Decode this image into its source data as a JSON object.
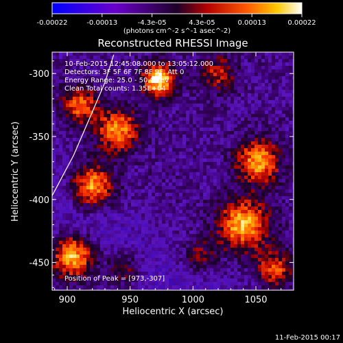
{
  "chart_data": {
    "type": "heatmap",
    "title": "Reconstructed RHESSI Image",
    "xlabel": "Heliocentric X (arcsec)",
    "ylabel": "Heliocentric Y (arcsec)",
    "xlim": [
      888,
      1080
    ],
    "ylim": [
      -472,
      -283
    ],
    "x_ticks": [
      900,
      950,
      1000,
      1050
    ],
    "y_ticks": [
      -300,
      -350,
      -400,
      -450
    ],
    "colorbar": {
      "ticks": [
        "-0.00022",
        "-0.00013",
        "-4.3e-05",
        "4.3e-05",
        "0.00013",
        "0.00022"
      ],
      "unit_label": "(photons cm^-2 s^-1 asec^-2)",
      "range": [
        -0.00022,
        0.00022
      ]
    },
    "info_lines": [
      "10-Feb-2015 12:45:08.000 to 13:05:12.000",
      "Detectors: 3F 5F 6F 7F 8F 9F, Att 0",
      "Energy Range: 25.0 - 50.0 keV",
      "Clean    Total counts: 1.35E+04"
    ],
    "peak_label": "Position of Peak = [973,-307]",
    "peak": [
      973,
      -307
    ],
    "timestamp": "11-Feb-2015 00:17",
    "sources": [
      {
        "x": 973,
        "y": -305,
        "sigma": 9,
        "amp": 1.0
      },
      {
        "x": 940,
        "y": -345,
        "sigma": 12,
        "amp": 0.75
      },
      {
        "x": 920,
        "y": -390,
        "sigma": 12,
        "amp": 0.85
      },
      {
        "x": 905,
        "y": -445,
        "sigma": 12,
        "amp": 0.9
      },
      {
        "x": 910,
        "y": -325,
        "sigma": 10,
        "amp": 0.65
      },
      {
        "x": 1052,
        "y": -370,
        "sigma": 12,
        "amp": 0.8
      },
      {
        "x": 1040,
        "y": -420,
        "sigma": 14,
        "amp": 0.85
      },
      {
        "x": 1065,
        "y": -455,
        "sigma": 10,
        "amp": 0.6
      },
      {
        "x": 1020,
        "y": -300,
        "sigma": 10,
        "amp": 0.45
      },
      {
        "x": 945,
        "y": -455,
        "sigma": 10,
        "amp": 0.45
      },
      {
        "x": 1005,
        "y": -445,
        "sigma": 10,
        "amp": 0.35
      }
    ],
    "limb_curve": [
      [
        888,
        -397
      ],
      [
        905,
        -365
      ],
      [
        918,
        -335
      ],
      [
        930,
        -307
      ],
      [
        937,
        -285
      ]
    ]
  }
}
